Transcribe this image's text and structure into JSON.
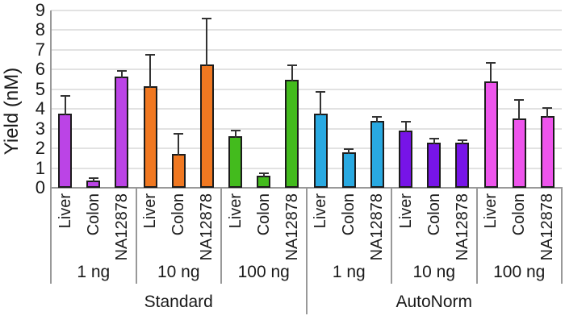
{
  "chart_data": {
    "type": "bar",
    "title": "",
    "xlabel": "",
    "ylabel": "Yield (nM)",
    "ylim": [
      0,
      9
    ],
    "yticks": [
      0,
      1,
      2,
      3,
      4,
      5,
      6,
      7,
      8,
      9
    ],
    "grid": true,
    "legend": false,
    "error_bars": "upper_only",
    "samples": [
      "Liver",
      "Colon",
      "NA12878"
    ],
    "conditions": [
      {
        "label": "Standard",
        "groups": [
          {
            "amount": "1 ng",
            "color": "#bb44e6",
            "values": [
              3.75,
              0.35,
              5.65
            ],
            "err_top": [
              4.65,
              0.5,
              5.95
            ]
          },
          {
            "amount": "10 ng",
            "color": "#f07821",
            "values": [
              5.15,
              1.7,
              6.25
            ],
            "err_top": [
              6.75,
              2.75,
              8.6
            ]
          },
          {
            "amount": "100 ng",
            "color": "#43bb1d",
            "values": [
              2.6,
              0.63,
              5.5
            ],
            "err_top": [
              2.9,
              0.72,
              6.2
            ]
          }
        ]
      },
      {
        "label": "AutoNorm",
        "groups": [
          {
            "amount": "1 ng",
            "color": "#29a9e1",
            "values": [
              3.75,
              1.8,
              3.4
            ],
            "err_top": [
              4.85,
              1.95,
              3.6
            ]
          },
          {
            "amount": "10 ng",
            "color": "#7714e8",
            "values": [
              2.9,
              2.3,
              2.3
            ],
            "err_top": [
              3.35,
              2.5,
              2.4
            ]
          },
          {
            "amount": "100 ng",
            "color": "#ee55ec",
            "values": [
              5.4,
              3.5,
              3.65
            ],
            "err_top": [
              6.35,
              4.45,
              4.05
            ]
          }
        ]
      }
    ]
  },
  "palette": {
    "gridline": "#e2e2e2",
    "axis": "#999999",
    "bar_outline": "#1c1c1c",
    "error_bar": "#333333",
    "text": "#1a1a1a",
    "background": "#ffffff"
  }
}
